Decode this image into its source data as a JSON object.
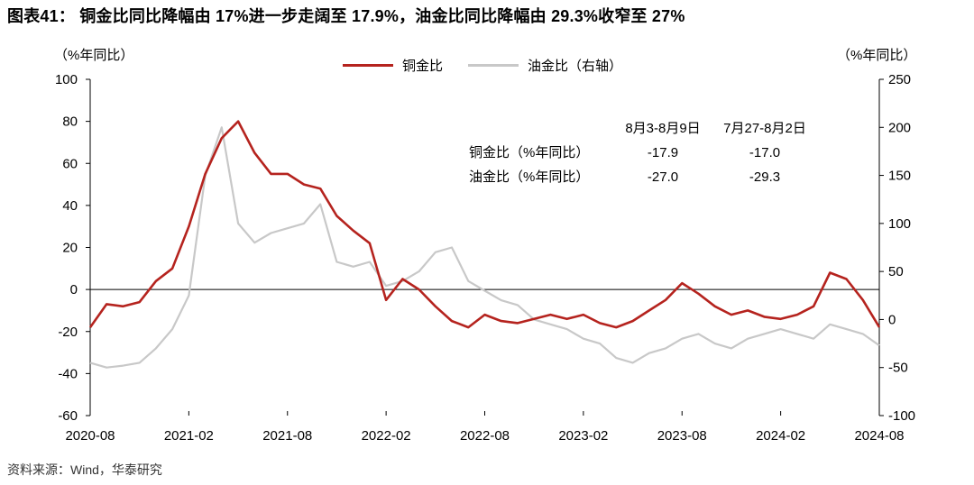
{
  "title": "图表41： 铜金比同比降幅由 17%进一步走阔至 17.9%，油金比同比降幅由 29.3%收窄至 27%",
  "source": "资料来源：Wind，华泰研究",
  "left_unit": "（%年同比）",
  "right_unit": "（%年同比）",
  "colors": {
    "copper": "#b5231e",
    "oil": "#c8c8c8"
  },
  "table": {
    "headers": [
      "8月3-8月9日",
      "7月27-8月2日"
    ],
    "rows": [
      {
        "label": "铜金比（%年同比）",
        "values": [
          "-17.9",
          "-17.0"
        ]
      },
      {
        "label": "油金比（%年同比）",
        "values": [
          "-27.0",
          "-29.3"
        ]
      }
    ]
  },
  "chart_data": {
    "type": "line",
    "x_ticks": [
      "2020-08",
      "2021-02",
      "2021-08",
      "2022-02",
      "2022-08",
      "2023-02",
      "2023-08",
      "2024-02",
      "2024-08"
    ],
    "x_range": [
      "2020-08",
      "2024-08"
    ],
    "y_left": {
      "range": [
        -60,
        100
      ],
      "ticks": [
        -60,
        -40,
        -20,
        0,
        20,
        40,
        60,
        80,
        100
      ]
    },
    "y_right": {
      "range": [
        -100,
        250
      ],
      "ticks": [
        -100,
        -50,
        0,
        50,
        100,
        150,
        200,
        250
      ]
    },
    "grid": false,
    "legend": "top-center",
    "series": [
      {
        "name": "铜金比",
        "axis": "left",
        "x": [
          "2020-08",
          "2020-09",
          "2020-10",
          "2020-11",
          "2020-12",
          "2021-01",
          "2021-02",
          "2021-03",
          "2021-04",
          "2021-05",
          "2021-06",
          "2021-07",
          "2021-08",
          "2021-09",
          "2021-10",
          "2021-11",
          "2021-12",
          "2022-01",
          "2022-02",
          "2022-03",
          "2022-04",
          "2022-05",
          "2022-06",
          "2022-07",
          "2022-08",
          "2022-09",
          "2022-10",
          "2022-11",
          "2022-12",
          "2023-01",
          "2023-02",
          "2023-03",
          "2023-04",
          "2023-05",
          "2023-06",
          "2023-07",
          "2023-08",
          "2023-09",
          "2023-10",
          "2023-11",
          "2023-12",
          "2024-01",
          "2024-02",
          "2024-03",
          "2024-04",
          "2024-05",
          "2024-06",
          "2024-07",
          "2024-08"
        ],
        "values": [
          -18,
          -7,
          -8,
          -6,
          4,
          10,
          30,
          55,
          72,
          80,
          65,
          55,
          55,
          50,
          48,
          35,
          28,
          22,
          -5,
          5,
          0,
          -8,
          -15,
          -18,
          -12,
          -15,
          -16,
          -14,
          -12,
          -14,
          -12,
          -16,
          -18,
          -15,
          -10,
          -5,
          3,
          -2,
          -8,
          -12,
          -10,
          -13,
          -14,
          -12,
          -8,
          8,
          5,
          -5,
          -17.9
        ]
      },
      {
        "name": "油金比（右轴）",
        "axis": "right",
        "x": [
          "2020-08",
          "2020-09",
          "2020-10",
          "2020-11",
          "2020-12",
          "2021-01",
          "2021-02",
          "2021-03",
          "2021-04",
          "2021-05",
          "2021-06",
          "2021-07",
          "2021-08",
          "2021-09",
          "2021-10",
          "2021-11",
          "2021-12",
          "2022-01",
          "2022-02",
          "2022-03",
          "2022-04",
          "2022-05",
          "2022-06",
          "2022-07",
          "2022-08",
          "2022-09",
          "2022-10",
          "2022-11",
          "2022-12",
          "2023-01",
          "2023-02",
          "2023-03",
          "2023-04",
          "2023-05",
          "2023-06",
          "2023-07",
          "2023-08",
          "2023-09",
          "2023-10",
          "2023-11",
          "2023-12",
          "2024-01",
          "2024-02",
          "2024-03",
          "2024-04",
          "2024-05",
          "2024-06",
          "2024-07",
          "2024-08"
        ],
        "values": [
          -45,
          -50,
          -48,
          -45,
          -30,
          -10,
          25,
          150,
          200,
          100,
          80,
          90,
          95,
          100,
          120,
          60,
          55,
          60,
          35,
          40,
          50,
          70,
          75,
          40,
          30,
          20,
          15,
          0,
          -5,
          -10,
          -20,
          -25,
          -40,
          -45,
          -35,
          -30,
          -20,
          -15,
          -25,
          -30,
          -20,
          -15,
          -10,
          -15,
          -20,
          -5,
          -10,
          -15,
          -27
        ]
      }
    ]
  }
}
